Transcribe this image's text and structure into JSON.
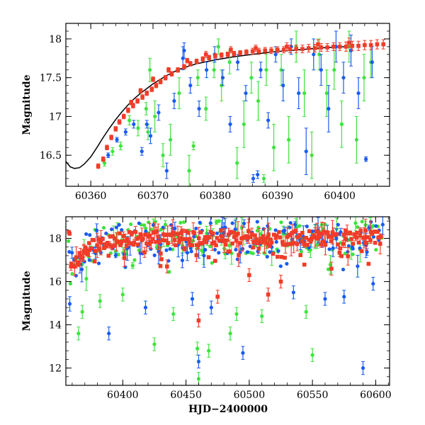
{
  "chart_data": [
    {
      "type": "scatter",
      "panel": "top",
      "title": "",
      "xlabel": "",
      "ylabel": "Magnitude",
      "xlim": [
        60356,
        60408
      ],
      "ylim": [
        18.2,
        16.1
      ],
      "y_inverted": true,
      "grid": false,
      "x_ticks": [
        60360,
        60370,
        60380,
        60390,
        60400
      ],
      "x_tick_labels": [
        "60360",
        "60370",
        "60380",
        "60390",
        "60400"
      ],
      "y_ticks": [
        16.5,
        17,
        17.5,
        18
      ],
      "y_tick_labels": [
        "16.5",
        "17",
        "17.5",
        "18"
      ],
      "colors": {
        "red": "#f03c28",
        "green": "#3fe33f",
        "blue": "#1a5cf0",
        "model": "#000000"
      },
      "series": [
        {
          "color_key": "red",
          "points": [
            [
              60361.2,
              16.36,
              0.03
            ],
            [
              60362.0,
              16.45,
              0.03
            ],
            [
              60362.6,
              16.6,
              0.03
            ],
            [
              60363.3,
              16.73,
              0.03
            ],
            [
              60364.0,
              16.84,
              0.03
            ],
            [
              60364.6,
              16.93,
              0.03
            ],
            [
              60365.3,
              17.0,
              0.03
            ],
            [
              60366.0,
              17.08,
              0.03
            ],
            [
              60366.8,
              17.14,
              0.03
            ],
            [
              60367.5,
              17.2,
              0.03
            ],
            [
              60368.3,
              17.25,
              0.03
            ],
            [
              60369.0,
              17.3,
              0.03
            ],
            [
              60369.8,
              17.35,
              0.03
            ],
            [
              60370.5,
              17.4,
              0.03
            ],
            [
              60371.2,
              17.45,
              0.03
            ],
            [
              60372.0,
              17.5,
              0.03
            ],
            [
              60373.0,
              17.55,
              0.03
            ],
            [
              60374.0,
              17.6,
              0.03
            ],
            [
              60375.0,
              17.64,
              0.03
            ],
            [
              60376.0,
              17.68,
              0.03
            ],
            [
              60377.0,
              17.71,
              0.03
            ],
            [
              60378.0,
              17.74,
              0.03
            ],
            [
              60379.0,
              17.76,
              0.03
            ],
            [
              60380.0,
              17.78,
              0.03
            ],
            [
              60381.0,
              17.79,
              0.03
            ],
            [
              60382.0,
              17.8,
              0.03
            ],
            [
              60383.0,
              17.81,
              0.03
            ],
            [
              60384.0,
              17.82,
              0.03
            ],
            [
              60385.0,
              17.83,
              0.03
            ],
            [
              60386.0,
              17.84,
              0.04
            ],
            [
              60387.0,
              17.84,
              0.04
            ],
            [
              60388.0,
              17.85,
              0.04
            ],
            [
              60389.0,
              17.85,
              0.04
            ],
            [
              60390.0,
              17.86,
              0.04
            ],
            [
              60391.0,
              17.86,
              0.04
            ],
            [
              60392.0,
              17.87,
              0.05
            ],
            [
              60393.0,
              17.87,
              0.05
            ],
            [
              60394.0,
              17.87,
              0.05
            ],
            [
              60395.0,
              17.88,
              0.05
            ],
            [
              60396.0,
              17.88,
              0.05
            ],
            [
              60397.0,
              17.89,
              0.05
            ],
            [
              60398.0,
              17.89,
              0.05
            ],
            [
              60399.0,
              17.9,
              0.05
            ],
            [
              60400.0,
              17.9,
              0.05
            ],
            [
              60401.0,
              17.9,
              0.06
            ],
            [
              60402.0,
              17.91,
              0.06
            ],
            [
              60403.0,
              17.91,
              0.06
            ],
            [
              60404.0,
              17.92,
              0.06
            ],
            [
              60405.0,
              17.92,
              0.06
            ],
            [
              60406.0,
              17.93,
              0.06
            ],
            [
              60407.0,
              17.93,
              0.06
            ],
            [
              60366.5,
              17.18,
              0.03
            ],
            [
              60368.0,
              17.33,
              0.03
            ],
            [
              60370.0,
              17.48,
              0.03
            ],
            [
              60372.5,
              17.6,
              0.03
            ],
            [
              60375.5,
              17.72,
              0.03
            ],
            [
              60378.5,
              17.8,
              0.04
            ],
            [
              60382.5,
              17.86,
              0.04
            ],
            [
              60386.5,
              17.88,
              0.04
            ],
            [
              60391.5,
              17.9,
              0.05
            ],
            [
              60396.5,
              17.93,
              0.06
            ],
            [
              60401.5,
              17.95,
              0.06
            ]
          ]
        },
        {
          "color_key": "green",
          "points": [
            [
              60362.2,
              16.4,
              0.04
            ],
            [
              60363.5,
              16.55,
              0.05
            ],
            [
              60364.8,
              16.62,
              0.05
            ],
            [
              60366.2,
              16.95,
              0.06
            ],
            [
              60367.6,
              16.85,
              0.1
            ],
            [
              60368.9,
              17.1,
              0.08
            ],
            [
              60369.5,
              17.6,
              0.15
            ],
            [
              60370.3,
              17.0,
              0.2
            ],
            [
              60371.6,
              16.5,
              0.15
            ],
            [
              60372.8,
              16.7,
              0.2
            ],
            [
              60374.2,
              17.3,
              0.2
            ],
            [
              60375.8,
              16.3,
              0.2
            ],
            [
              60377.2,
              17.5,
              0.1
            ],
            [
              60378.5,
              17.1,
              0.15
            ],
            [
              60379.8,
              17.6,
              0.1
            ],
            [
              60381.0,
              17.4,
              0.2
            ],
            [
              60382.3,
              17.7,
              0.15
            ],
            [
              60383.5,
              16.4,
              0.2
            ],
            [
              60384.6,
              16.9,
              0.3
            ],
            [
              60385.8,
              17.5,
              0.2
            ],
            [
              60386.9,
              17.2,
              0.25
            ],
            [
              60388.2,
              17.6,
              0.2
            ],
            [
              60389.4,
              16.6,
              0.3
            ],
            [
              60390.6,
              17.6,
              0.2
            ],
            [
              60391.8,
              16.7,
              0.3
            ],
            [
              60393.0,
              17.9,
              0.2
            ],
            [
              60394.3,
              17.3,
              0.3
            ],
            [
              60395.5,
              16.5,
              0.3
            ],
            [
              60396.7,
              17.8,
              0.2
            ],
            [
              60397.9,
              17.3,
              0.3
            ],
            [
              60399.1,
              17.6,
              0.25
            ],
            [
              60400.3,
              16.9,
              0.3
            ],
            [
              60401.5,
              17.9,
              0.2
            ],
            [
              60402.7,
              16.7,
              0.3
            ],
            [
              60403.9,
              17.5,
              0.3
            ],
            [
              60405.0,
              17.7,
              0.2
            ],
            [
              60369.2,
              16.8,
              0.1
            ],
            [
              60376.5,
              16.62,
              0.05
            ],
            [
              60387.8,
              16.2,
              0.05
            ],
            [
              60380.5,
              17.9,
              0.1
            ]
          ]
        },
        {
          "color_key": "blue",
          "points": [
            [
              60362.8,
              16.5,
              0.03
            ],
            [
              60364.2,
              16.7,
              0.03
            ],
            [
              60365.6,
              16.8,
              0.04
            ],
            [
              60366.9,
              16.9,
              0.05
            ],
            [
              60368.2,
              16.55,
              0.05
            ],
            [
              60369.6,
              16.75,
              0.1
            ],
            [
              60370.9,
              17.05,
              0.1
            ],
            [
              60372.2,
              16.3,
              0.1
            ],
            [
              60373.4,
              17.2,
              0.1
            ],
            [
              60374.8,
              17.75,
              0.15
            ],
            [
              60376.0,
              17.4,
              0.1
            ],
            [
              60377.4,
              17.1,
              0.1
            ],
            [
              60378.6,
              17.6,
              0.1
            ],
            [
              60379.9,
              17.8,
              0.1
            ],
            [
              60381.2,
              17.5,
              0.1
            ],
            [
              60382.4,
              16.9,
              0.1
            ],
            [
              60383.6,
              17.7,
              0.1
            ],
            [
              60384.9,
              17.3,
              0.1
            ],
            [
              60386.1,
              16.2,
              0.05
            ],
            [
              60387.3,
              17.6,
              0.1
            ],
            [
              60388.5,
              16.95,
              0.1
            ],
            [
              60389.7,
              17.8,
              0.1
            ],
            [
              60390.9,
              17.4,
              0.2
            ],
            [
              60392.2,
              17.9,
              0.1
            ],
            [
              60393.4,
              17.3,
              0.2
            ],
            [
              60394.6,
              16.55,
              0.3
            ],
            [
              60395.8,
              17.8,
              0.2
            ],
            [
              60397.0,
              17.6,
              0.2
            ],
            [
              60398.2,
              17.1,
              0.3
            ],
            [
              60399.4,
              17.9,
              0.2
            ],
            [
              60400.6,
              17.5,
              0.2
            ],
            [
              60401.8,
              17.85,
              0.2
            ],
            [
              60403.0,
              17.3,
              0.2
            ],
            [
              60404.2,
              16.45,
              0.03
            ],
            [
              60405.2,
              17.7,
              0.2
            ],
            [
              60386.8,
              16.25,
              0.05
            ],
            [
              60369.0,
              16.9,
              0.05
            ],
            [
              60375.0,
              17.85,
              0.1
            ]
          ]
        }
      ],
      "model_curve": [
        [
          60356.0,
          16.42
        ],
        [
          60356.7,
          16.35
        ],
        [
          60357.4,
          16.33
        ],
        [
          60358.2,
          16.34
        ],
        [
          60359.0,
          16.39
        ],
        [
          60360.0,
          16.48
        ],
        [
          60361.0,
          16.6
        ],
        [
          60362.0,
          16.73
        ],
        [
          60363.0,
          16.85
        ],
        [
          60364.0,
          16.96
        ],
        [
          60365.0,
          17.06
        ],
        [
          60366.0,
          17.15
        ],
        [
          60367.0,
          17.23
        ],
        [
          60368.0,
          17.3
        ],
        [
          60369.0,
          17.36
        ],
        [
          60370.0,
          17.42
        ],
        [
          60371.0,
          17.47
        ],
        [
          60372.0,
          17.52
        ],
        [
          60373.0,
          17.56
        ],
        [
          60374.0,
          17.6
        ],
        [
          60375.0,
          17.63
        ],
        [
          60377.0,
          17.68
        ],
        [
          60380.0,
          17.73
        ],
        [
          60383.0,
          17.77
        ],
        [
          60386.0,
          17.8
        ],
        [
          60389.0,
          17.83
        ],
        [
          60392.0,
          17.85
        ],
        [
          60395.0,
          17.87
        ],
        [
          60398.0,
          17.89
        ],
        [
          60401.0,
          17.9
        ]
      ]
    },
    {
      "type": "scatter",
      "panel": "bottom",
      "title": "",
      "xlabel": "HJD−2400000",
      "ylabel": "Magnitude",
      "xlim": [
        60355,
        60611
      ],
      "ylim": [
        19.0,
        11.2
      ],
      "y_inverted": true,
      "grid": false,
      "x_ticks": [
        60400,
        60450,
        60500,
        60550,
        60600
      ],
      "x_tick_labels": [
        "60400",
        "60450",
        "60500",
        "60550",
        "60600"
      ],
      "y_ticks": [
        12,
        14,
        16,
        18
      ],
      "y_tick_labels": [
        "12",
        "14",
        "16",
        "18"
      ],
      "colors": {
        "red": "#f03c28",
        "green": "#3fe33f",
        "blue": "#1a5cf0"
      },
      "trend": [
        [
          60358,
          16.4
        ],
        [
          60362,
          16.8
        ],
        [
          60366,
          17.1
        ],
        [
          60370,
          17.35
        ],
        [
          60375,
          17.55
        ],
        [
          60380,
          17.7
        ],
        [
          60390,
          17.85
        ],
        [
          60400,
          17.92
        ],
        [
          60420,
          17.96
        ],
        [
          60450,
          17.98
        ],
        [
          60500,
          17.99
        ],
        [
          60550,
          18.0
        ],
        [
          60605,
          18.0
        ]
      ],
      "outliers": {
        "red": [
          [
            60435,
            16.7
          ],
          [
            60430,
            17.3
          ],
          [
            60475,
            15.3
          ],
          [
            60460,
            14.2
          ],
          [
            60500,
            16.3
          ],
          [
            60515,
            15.4
          ],
          [
            60525,
            16.0
          ],
          [
            60565,
            16.6
          ]
        ],
        "green": [
          [
            60365,
            13.6
          ],
          [
            60368,
            14.6
          ],
          [
            60425,
            13.1
          ],
          [
            60440,
            14.5
          ],
          [
            60460,
            11.5
          ],
          [
            60459,
            12.9
          ],
          [
            60468,
            12.8
          ],
          [
            60485,
            13.6
          ],
          [
            60490,
            14.5
          ],
          [
            60510,
            14.4
          ],
          [
            60550,
            12.6
          ],
          [
            60545,
            14.6
          ],
          [
            60382,
            15.1
          ],
          [
            60400,
            15.4
          ]
        ],
        "blue": [
          [
            60590,
            12.0
          ],
          [
            60495,
            12.7
          ],
          [
            60389,
            13.6
          ],
          [
            60418,
            14.8
          ],
          [
            60455,
            15.2
          ],
          [
            60460,
            12.3
          ],
          [
            60470,
            14.8
          ],
          [
            60535,
            15.5
          ],
          [
            60560,
            15.2
          ],
          [
            60575,
            15.3
          ],
          [
            60598,
            15.9
          ]
        ]
      }
    }
  ]
}
